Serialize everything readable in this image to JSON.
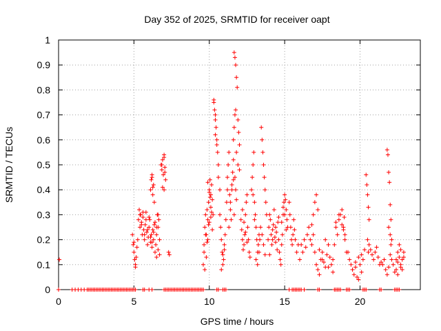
{
  "chart_data": {
    "type": "scatter",
    "title": "Day 352 of 2025, SRMTID for receiver oapt",
    "xlabel": "GPS time / hours",
    "ylabel": "SRMTID / TECUs",
    "xlim": [
      0,
      24
    ],
    "ylim": [
      0,
      1
    ],
    "x_ticks": [
      "0",
      "5",
      "10",
      "15",
      "20"
    ],
    "x_tick_values": [
      0,
      5,
      10,
      15,
      20
    ],
    "y_ticks": [
      "0",
      "0.1",
      "0.2",
      "0.3",
      "0.4",
      "0.5",
      "0.6",
      "0.7",
      "0.8",
      "0.9",
      "1"
    ],
    "y_tick_values": [
      0,
      0.1,
      0.2,
      0.3,
      0.4,
      0.5,
      0.6,
      0.7,
      0.8,
      0.9,
      1.0
    ],
    "grid": true,
    "marker": "+",
    "marker_color": "#ff0000",
    "series": [
      {
        "x": [
          0.0,
          0.05,
          0.9,
          1.1,
          1.3,
          1.5,
          1.7,
          1.9,
          2.0,
          2.1,
          2.2,
          2.3,
          2.4,
          2.5,
          2.6,
          2.7,
          2.8,
          2.9,
          3.0,
          3.1,
          3.2,
          3.3,
          3.4,
          3.5,
          3.6,
          3.7,
          3.8,
          3.9,
          4.0,
          4.1,
          4.2,
          4.3,
          4.4,
          4.5,
          4.6,
          4.7,
          4.8,
          4.9,
          5.0,
          5.1,
          5.6,
          5.7,
          6.0,
          6.2,
          7.0,
          7.1,
          7.2,
          7.3,
          7.4,
          7.5,
          7.6,
          7.7,
          7.8,
          7.9,
          8.0,
          8.1,
          8.2,
          8.3,
          8.4,
          8.5,
          8.6,
          8.7,
          8.8,
          8.9,
          9.0,
          9.1,
          9.2,
          9.3,
          9.4,
          9.5,
          9.6,
          10.5,
          10.6,
          10.9,
          11.0,
          11.1,
          15.3,
          15.5,
          15.6,
          15.7,
          15.8,
          15.9,
          16.0,
          16.1,
          16.3,
          17.2,
          17.3,
          18.3,
          18.4,
          18.5,
          18.6,
          18.7,
          19.1,
          19.2,
          19.3,
          20.2,
          20.3,
          20.4,
          21.3,
          21.4,
          22.3,
          22.4,
          22.5,
          22.6,
          4.9,
          4.95,
          5.0,
          5.05,
          5.1,
          5.15,
          5.2,
          5.25,
          5.0,
          5.1,
          5.3,
          5.35,
          5.4,
          5.45,
          5.5,
          5.55,
          5.6,
          5.65,
          5.7,
          5.75,
          5.8,
          5.85,
          5.9,
          5.95,
          6.0,
          6.05,
          6.1,
          6.15,
          6.2,
          6.25,
          6.3,
          6.35,
          6.4,
          6.45,
          6.5,
          6.55,
          6.6,
          6.65,
          6.7,
          6.5,
          6.6,
          5.4,
          5.5,
          5.6,
          5.7,
          5.8,
          5.9,
          6.0,
          6.1,
          6.2,
          6.3,
          6.4,
          6.5,
          6.6,
          6.7,
          6.1,
          6.15,
          6.2,
          6.25,
          6.3,
          6.35,
          6.2,
          6.25,
          6.8,
          6.85,
          6.9,
          6.95,
          7.0,
          7.05,
          7.1,
          6.9,
          7.0,
          7.05,
          6.85,
          7.0,
          7.3,
          7.35,
          9.6,
          9.65,
          9.7,
          9.75,
          9.8,
          9.85,
          9.9,
          9.95,
          10.0,
          10.05,
          10.1,
          10.15,
          10.2,
          10.25,
          9.7,
          9.8,
          9.9,
          10.0,
          10.1,
          9.65,
          9.75,
          9.85,
          9.95,
          10.05,
          10.15,
          9.9,
          10.0,
          10.1,
          10.2,
          10.3,
          10.35,
          10.4,
          10.45,
          10.5,
          10.55,
          10.6,
          10.4,
          10.5,
          10.6,
          10.7,
          10.3,
          10.4,
          10.7,
          10.75,
          10.8,
          10.85,
          10.9,
          10.95,
          11.0,
          11.05,
          11.1,
          11.15,
          11.2,
          10.8,
          10.9,
          11.0,
          11.2,
          11.25,
          11.3,
          11.35,
          11.4,
          11.45,
          11.5,
          11.55,
          11.6,
          11.65,
          11.3,
          11.4,
          11.5,
          11.6,
          11.6,
          11.65,
          11.7,
          11.75,
          11.65,
          11.7,
          11.75,
          11.8,
          11.85,
          11.9,
          11.95,
          12.0,
          11.8,
          11.9,
          12.0,
          11.7,
          11.75,
          11.8,
          12.1,
          12.15,
          12.2,
          12.25,
          12.3,
          12.35,
          12.4,
          12.45,
          12.5,
          12.55,
          12.6,
          12.65,
          12.7,
          12.2,
          12.3,
          12.4,
          12.5,
          12.8,
          12.85,
          12.9,
          12.95,
          13.0,
          13.05,
          13.1,
          13.15,
          13.2,
          13.25,
          13.3,
          12.9,
          13.0,
          13.1,
          13.2,
          13.3,
          13.35,
          13.4,
          13.45,
          13.5,
          13.55,
          13.6,
          13.65,
          13.7,
          13.75,
          13.8,
          13.5,
          13.6,
          13.7,
          13.9,
          13.95,
          14.0,
          14.05,
          14.1,
          14.15,
          14.2,
          14.25,
          14.3,
          14.35,
          14.4,
          14.45,
          14.5,
          14.55,
          14.6,
          14.0,
          14.2,
          14.4,
          14.6,
          14.65,
          14.7,
          14.75,
          14.8,
          14.85,
          14.9,
          14.95,
          15.0,
          15.05,
          15.1,
          15.15,
          15.2,
          14.8,
          14.9,
          15.0,
          15.1,
          15.3,
          15.35,
          15.4,
          15.45,
          15.5,
          15.55,
          15.6,
          15.65,
          15.7,
          15.8,
          15.9,
          16.0,
          16.1,
          16.2,
          16.3,
          16.4,
          16.5,
          16.6,
          16.7,
          16.8,
          16.9,
          17.0,
          17.1,
          17.2,
          16.8,
          16.9,
          17.0,
          17.1,
          17.2,
          17.3,
          17.4,
          17.5,
          17.6,
          17.7,
          17.8,
          17.9,
          18.0,
          18.1,
          18.2,
          17.3,
          17.5,
          17.7,
          17.9,
          18.2,
          18.3,
          18.4,
          18.5,
          18.6,
          18.7,
          18.8,
          18.9,
          19.0,
          19.1,
          18.4,
          18.6,
          18.8,
          19.0,
          18.9,
          18.95,
          19.2,
          19.3,
          19.4,
          19.5,
          19.6,
          19.7,
          19.8,
          19.9,
          20.0,
          20.1,
          20.2,
          20.3,
          19.5,
          19.7,
          19.9,
          20.1,
          20.4,
          20.45,
          20.5,
          20.55,
          20.6,
          20.5,
          20.55,
          20.6,
          20.7,
          20.8,
          20.9,
          21.0,
          21.1,
          21.2,
          21.3,
          21.4,
          21.5,
          21.6,
          21.7,
          21.8,
          21.9,
          22.0,
          22.1,
          22.2,
          22.3,
          22.4,
          22.5,
          22.6,
          22.7,
          22.8,
          22.9,
          21.8,
          21.85,
          21.9,
          21.95,
          22.0,
          22.05,
          21.9,
          22.0,
          22.05,
          22.1,
          22.4,
          22.5,
          22.6,
          22.7,
          22.8,
          22.9,
          22.5,
          22.7
        ],
        "y": [
          0,
          0.12,
          0,
          0,
          0,
          0,
          0,
          0,
          0,
          0,
          0,
          0,
          0,
          0,
          0,
          0,
          0,
          0,
          0,
          0,
          0,
          0,
          0,
          0,
          0,
          0,
          0,
          0,
          0,
          0,
          0,
          0,
          0,
          0,
          0,
          0,
          0,
          0,
          0,
          0,
          0,
          0,
          0,
          0,
          0,
          0,
          0,
          0,
          0,
          0,
          0,
          0,
          0,
          0,
          0,
          0,
          0,
          0,
          0,
          0,
          0,
          0,
          0,
          0,
          0,
          0,
          0,
          0,
          0,
          0,
          0,
          0,
          0,
          0,
          0,
          0,
          0,
          0,
          0,
          0,
          0,
          0,
          0,
          0,
          0,
          0,
          0,
          0,
          0,
          0,
          0,
          0,
          0,
          0,
          0,
          0,
          0,
          0,
          0,
          0,
          0,
          0,
          0,
          0,
          0.22,
          0.18,
          0.15,
          0.12,
          0.1,
          0.13,
          0.17,
          0.2,
          0.19,
          0.09,
          0.28,
          0.32,
          0.25,
          0.3,
          0.27,
          0.22,
          0.29,
          0.24,
          0.2,
          0.26,
          0.31,
          0.23,
          0.18,
          0.21,
          0.25,
          0.28,
          0.19,
          0.22,
          0.17,
          0.24,
          0.2,
          0.26,
          0.15,
          0.18,
          0.22,
          0.3,
          0.25,
          0.28,
          0.2,
          0.13,
          0.16,
          0.3,
          0.26,
          0.31,
          0.22,
          0.28,
          0.24,
          0.29,
          0.21,
          0.19,
          0.23,
          0.27,
          0.25,
          0.3,
          0.14,
          0.4,
          0.44,
          0.46,
          0.38,
          0.42,
          0.35,
          0.45,
          0.41,
          0.5,
          0.48,
          0.52,
          0.46,
          0.54,
          0.49,
          0.44,
          0.41,
          0.4,
          0.47,
          0.5,
          0.53,
          0.15,
          0.14,
          0.1,
          0.18,
          0.25,
          0.3,
          0.22,
          0.32,
          0.28,
          0.35,
          0.4,
          0.44,
          0.38,
          0.42,
          0.36,
          0.3,
          0.08,
          0.13,
          0.2,
          0.27,
          0.33,
          0.15,
          0.22,
          0.19,
          0.26,
          0.37,
          0.31,
          0.43,
          0.39,
          0.29,
          0.24,
          0.75,
          0.72,
          0.7,
          0.65,
          0.6,
          0.55,
          0.5,
          0.62,
          0.58,
          0.45,
          0.4,
          0.76,
          0.68,
          0.3,
          0.25,
          0.2,
          0.15,
          0.1,
          0.12,
          0.18,
          0.22,
          0.28,
          0.35,
          0.4,
          0.08,
          0.14,
          0.16,
          0.45,
          0.5,
          0.55,
          0.38,
          0.32,
          0.28,
          0.42,
          0.47,
          0.52,
          0.3,
          0.25,
          0.35,
          0.4,
          0.44,
          0.6,
          0.65,
          0.7,
          0.72,
          0.95,
          0.93,
          0.9,
          0.85,
          0.81,
          0.68,
          0.63,
          0.58,
          0.55,
          0.5,
          0.48,
          0.45,
          0.4,
          0.36,
          0.28,
          0.24,
          0.2,
          0.16,
          0.18,
          0.22,
          0.3,
          0.35,
          0.38,
          0.25,
          0.2,
          0.15,
          0.13,
          0.32,
          0.27,
          0.23,
          0.19,
          0.4,
          0.45,
          0.5,
          0.55,
          0.35,
          0.3,
          0.25,
          0.2,
          0.15,
          0.18,
          0.22,
          0.38,
          0.28,
          0.12,
          0.1,
          0.15,
          0.2,
          0.25,
          0.65,
          0.6,
          0.55,
          0.5,
          0.45,
          0.4,
          0.35,
          0.3,
          0.22,
          0.18,
          0.14,
          0.2,
          0.25,
          0.3,
          0.28,
          0.22,
          0.18,
          0.24,
          0.26,
          0.32,
          0.21,
          0.19,
          0.23,
          0.16,
          0.27,
          0.29,
          0.14,
          0.2,
          0.25,
          0.2,
          0.15,
          0.12,
          0.1,
          0.18,
          0.22,
          0.3,
          0.35,
          0.38,
          0.36,
          0.32,
          0.28,
          0.25,
          0.27,
          0.33,
          0.3,
          0.24,
          0.35,
          0.3,
          0.25,
          0.2,
          0.18,
          0.22,
          0.28,
          0.24,
          0.2,
          0.15,
          0.18,
          0.12,
          0.18,
          0.15,
          0.2,
          0.17,
          0.22,
          0.25,
          0.2,
          0.18,
          0.3,
          0.35,
          0.38,
          0.32,
          0.26,
          0.22,
          0.15,
          0.1,
          0.08,
          0.06,
          0.12,
          0.15,
          0.11,
          0.09,
          0.14,
          0.18,
          0.13,
          0.1,
          0.07,
          0.16,
          0.12,
          0.2,
          0.09,
          0.12,
          0.18,
          0.25,
          0.22,
          0.28,
          0.3,
          0.26,
          0.24,
          0.2,
          0.15,
          0.27,
          0.3,
          0.32,
          0.22,
          0.25,
          0.29,
          0.15,
          0.12,
          0.1,
          0.08,
          0.06,
          0.09,
          0.05,
          0.04,
          0.1,
          0.14,
          0.12,
          0.16,
          0.08,
          0.11,
          0.13,
          0.07,
          0.46,
          0.42,
          0.38,
          0.33,
          0.28,
          0.2,
          0.15,
          0.18,
          0.16,
          0.14,
          0.12,
          0.15,
          0.17,
          0.13,
          0.1,
          0.11,
          0.1,
          0.12,
          0.08,
          0.06,
          0.09,
          0.14,
          0.12,
          0.1,
          0.07,
          0.08,
          0.11,
          0.13,
          0.09,
          0.12,
          0.15,
          0.56,
          0.54,
          0.47,
          0.43,
          0.34,
          0.28,
          0.25,
          0.22,
          0.18,
          0.2,
          0.12,
          0.15,
          0.18,
          0.1,
          0.08,
          0.13,
          0.06,
          0.16
        ]
      }
    ]
  }
}
